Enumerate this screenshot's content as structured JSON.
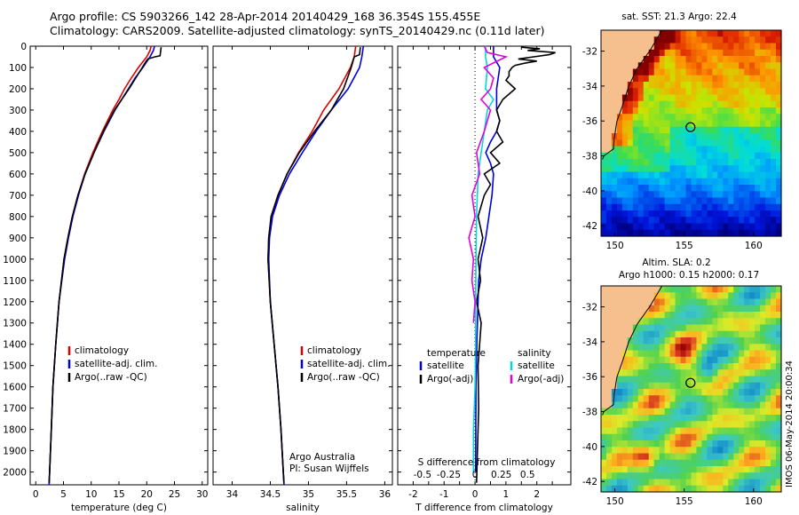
{
  "title_line1": "Argo profile: CS 5903266_142 28-Apr-2014 20140429_168 36.354S 155.455E",
  "title_line2": "Climatology: CARS2009. Satellite-adjusted climatology: synTS_20140429.nc (0.11d later)",
  "colors": {
    "clim": "#e00000",
    "sat": "#0000e0",
    "argo": "#000000",
    "sal_sat": "#00d8d8",
    "sal_argo": "#e000e0"
  },
  "chart_data": [
    {
      "type": "line",
      "id": "temperature",
      "xlabel": "temperature (deg C)",
      "xlim": [
        -1,
        31
      ],
      "xticks": [
        0,
        5,
        10,
        15,
        20,
        25,
        30
      ],
      "xticklabels": [
        "0",
        "5",
        "10",
        "15",
        "20",
        "25",
        "30"
      ],
      "ylim": [
        0,
        2060
      ],
      "yticks": [
        0,
        100,
        200,
        300,
        400,
        500,
        600,
        700,
        800,
        900,
        1000,
        1100,
        1200,
        1300,
        1400,
        1500,
        1600,
        1700,
        1800,
        1900,
        2000
      ],
      "yticklabels": [
        "0",
        "100",
        "200",
        "300",
        "400",
        "500",
        "600",
        "700",
        "800",
        "900",
        "1000",
        "1100",
        "1200",
        "1300",
        "1400",
        "1500",
        "1600",
        "1700",
        "1800",
        "1900",
        "2000"
      ],
      "legend": [
        "climatology",
        "satellite-adj. clim.",
        "Argo(..raw -QC)"
      ],
      "series": [
        {
          "name": "climatology",
          "color": "#e00000",
          "depth": [
            0,
            20,
            50,
            100,
            150,
            200,
            250,
            300,
            400,
            500,
            600,
            700,
            800,
            900,
            1000,
            1200,
            1400,
            1600,
            1800,
            2000,
            2060
          ],
          "values": [
            20.8,
            20.6,
            20.0,
            18.5,
            17.2,
            16.0,
            15.0,
            13.9,
            12.0,
            10.3,
            8.8,
            7.6,
            6.6,
            5.8,
            5.1,
            4.2,
            3.6,
            3.1,
            2.8,
            2.5,
            2.4
          ]
        },
        {
          "name": "satellite-adj. clim.",
          "color": "#0000e0",
          "depth": [
            0,
            20,
            50,
            100,
            150,
            200,
            250,
            300,
            400,
            500,
            600,
            700,
            800,
            900,
            1000,
            1200,
            1400,
            1600,
            1800,
            2000,
            2060
          ],
          "values": [
            21.4,
            21.2,
            20.6,
            19.3,
            17.9,
            16.7,
            15.5,
            14.3,
            12.3,
            10.5,
            8.9,
            7.7,
            6.7,
            5.9,
            5.2,
            4.2,
            3.6,
            3.1,
            2.8,
            2.5,
            2.4
          ]
        },
        {
          "name": "Argo(..raw -QC)",
          "color": "#000000",
          "depth": [
            5,
            25,
            45,
            50,
            60,
            75,
            100,
            150,
            200,
            250,
            300,
            400,
            500,
            600,
            700,
            800,
            900,
            1000,
            1200,
            1400,
            1600,
            1800,
            2000,
            2050
          ],
          "values": [
            22.6,
            22.5,
            22.4,
            21.5,
            20.2,
            19.8,
            19.2,
            18.0,
            16.8,
            15.5,
            14.2,
            12.2,
            10.5,
            8.9,
            7.6,
            6.6,
            5.8,
            5.1,
            4.2,
            3.6,
            3.1,
            2.8,
            2.5,
            2.4
          ]
        }
      ]
    },
    {
      "type": "line",
      "id": "salinity",
      "xlabel": "salinity",
      "xlim": [
        33.75,
        36.1
      ],
      "xticks": [
        34,
        34.5,
        35,
        35.5,
        36
      ],
      "xticklabels": [
        "34",
        "34.5",
        "35",
        "35.5",
        "36"
      ],
      "ylim": [
        0,
        2060
      ],
      "legend": [
        "climatology",
        "satellite-adj. clim.",
        "Argo(..raw -QC)"
      ],
      "series": [
        {
          "name": "climatology",
          "color": "#e00000",
          "depth": [
            0,
            50,
            100,
            200,
            300,
            400,
            500,
            600,
            700,
            800,
            900,
            1000,
            1200,
            1400,
            1600,
            1800,
            2000,
            2060
          ],
          "values": [
            35.62,
            35.6,
            35.55,
            35.4,
            35.2,
            35.05,
            34.87,
            34.72,
            34.6,
            34.52,
            34.48,
            34.47,
            34.5,
            34.55,
            34.6,
            34.64,
            34.67,
            34.68
          ]
        },
        {
          "name": "satellite-adj. clim.",
          "color": "#0000e0",
          "depth": [
            0,
            50,
            100,
            200,
            300,
            400,
            500,
            600,
            700,
            800,
            900,
            1000,
            1200,
            1400,
            1600,
            1800,
            2000,
            2060
          ],
          "values": [
            35.72,
            35.7,
            35.67,
            35.52,
            35.3,
            35.1,
            34.92,
            34.75,
            34.62,
            34.53,
            34.49,
            34.48,
            34.5,
            34.55,
            34.6,
            34.64,
            34.67,
            34.68
          ]
        },
        {
          "name": "Argo(..raw -QC)",
          "color": "#000000",
          "depth": [
            5,
            40,
            50,
            100,
            200,
            300,
            400,
            500,
            600,
            700,
            800,
            900,
            1000,
            1200,
            1400,
            1600,
            1800,
            2000,
            2050
          ],
          "values": [
            35.68,
            35.67,
            35.6,
            35.56,
            35.46,
            35.3,
            35.08,
            34.88,
            34.72,
            34.6,
            34.51,
            34.48,
            34.47,
            34.5,
            34.55,
            34.6,
            34.64,
            34.67,
            34.68
          ]
        }
      ],
      "annotations": [
        "Argo Australia",
        "PI: Susan Wijffels"
      ]
    },
    {
      "type": "line",
      "id": "difference",
      "xlabel": "T difference from climatology",
      "xlabel2": "S difference from climatology",
      "xlim": [
        -2.5,
        3.1
      ],
      "xticks": [
        -2,
        -1.5,
        -1,
        -0.5,
        0,
        0.5,
        1,
        1.5,
        2,
        2.5
      ],
      "xticklabels": [
        "-2",
        "",
        "-1",
        "",
        "0",
        "",
        "1",
        "",
        "2",
        ""
      ],
      "s_ticklabels": [
        "-0.5",
        "-0.25",
        "0",
        "0.25",
        "0.5"
      ],
      "s_tick_positions": [
        -1.7,
        -0.85,
        0,
        0.85,
        1.7
      ],
      "ylim": [
        0,
        2060
      ],
      "legend_left_title": "temperature",
      "legend_left": [
        "satellite",
        "Argo(-adj)"
      ],
      "legend_right_title": "salinity",
      "legend_right": [
        "satellite",
        "Argo(-adj)"
      ],
      "series": [
        {
          "name": "temperature satellite",
          "color": "#0000e0",
          "depth": [
            0,
            50,
            100,
            200,
            300,
            350,
            400,
            450,
            500,
            550,
            600,
            700,
            800,
            900,
            1000,
            1100,
            1200,
            1300,
            1400,
            1500,
            1600,
            2000
          ],
          "values": [
            0.6,
            0.6,
            0.8,
            0.7,
            0.7,
            0.8,
            0.7,
            0.5,
            0.35,
            0.5,
            0.6,
            0.55,
            0.45,
            0.35,
            0.2,
            0.12,
            0.1,
            0.08,
            0.06,
            0.05,
            0.03,
            0.02
          ]
        },
        {
          "name": "temperature Argo(-adj)",
          "color": "#000000",
          "depth": [
            5,
            12,
            20,
            30,
            40,
            50,
            60,
            70,
            80,
            90,
            100,
            120,
            140,
            160,
            200,
            250,
            300,
            350,
            400,
            450,
            500,
            550,
            600,
            650,
            700,
            800,
            900,
            1000,
            1100,
            1200,
            1300,
            1500,
            1700,
            1900,
            2050
          ],
          "values": [
            1.5,
            2.1,
            1.7,
            2.6,
            2.4,
            1.9,
            1.4,
            2.0,
            1.6,
            1.3,
            1.2,
            1.1,
            1.1,
            1.0,
            1.3,
            0.9,
            0.7,
            0.8,
            0.7,
            0.9,
            0.5,
            0.8,
            0.3,
            0.5,
            0.3,
            0.1,
            0.25,
            0.1,
            0.18,
            0.05,
            0.2,
            0.1,
            0.12,
            0.08,
            0.05
          ]
        },
        {
          "name": "salinity satellite",
          "color": "#00d8d8",
          "depth": [
            0,
            50,
            100,
            200,
            250,
            300,
            400,
            500,
            600,
            800,
            1000,
            1200,
            1400,
            1600,
            1800,
            2000
          ],
          "values": [
            0.34,
            0.34,
            0.4,
            0.34,
            0.6,
            0.4,
            0.3,
            0.2,
            0.1,
            0.05,
            0.03,
            0.02,
            0.02,
            0.0,
            -0.05,
            -0.05
          ]
        },
        {
          "name": "salinity Argo(-adj)",
          "color": "#e000e0",
          "depth": [
            0,
            30,
            50,
            100,
            150,
            200,
            250,
            300,
            400,
            500,
            600,
            700,
            800,
            900,
            1000,
            1100,
            1200,
            1300
          ],
          "values": [
            0.3,
            0.4,
            1.0,
            0.3,
            0.6,
            0.5,
            0.2,
            0.5,
            0.3,
            0.05,
            0.15,
            -0.1,
            0.0,
            -0.2,
            -0.05,
            -0.1,
            0.0,
            -0.05
          ]
        }
      ]
    },
    {
      "type": "heatmap",
      "id": "sst_map",
      "title": "sat. SST: 21.3 Argo: 22.4",
      "xticks": [
        150,
        155,
        160
      ],
      "xticklabels": [
        "150",
        "155",
        "160"
      ],
      "yticks": [
        -32,
        -34,
        -36,
        -38,
        -40,
        -42
      ],
      "yticklabels": [
        "-32",
        "-34",
        "-36",
        "-38",
        "-40",
        "-42"
      ],
      "xlim": [
        149,
        162
      ],
      "ylim": [
        -42.6,
        -30.8
      ],
      "argo_position": [
        155.455,
        -36.354
      ]
    },
    {
      "type": "heatmap",
      "id": "sla_map",
      "title_line1": "Altim. SLA: 0.2",
      "title_line2": "Argo h1000: 0.15 h2000: 0.17",
      "xticks": [
        150,
        155,
        160
      ],
      "xticklabels": [
        "150",
        "155",
        "160"
      ],
      "yticks": [
        -32,
        -34,
        -36,
        -38,
        -40,
        -42
      ],
      "yticklabels": [
        "-32",
        "-34",
        "-36",
        "-38",
        "-40",
        "-42"
      ],
      "xlim": [
        149,
        162
      ],
      "ylim": [
        -42.6,
        -30.8
      ],
      "argo_position": [
        155.455,
        -36.354
      ]
    }
  ],
  "imos_stamp": "IMOS 06-May-2014 20:00:34"
}
